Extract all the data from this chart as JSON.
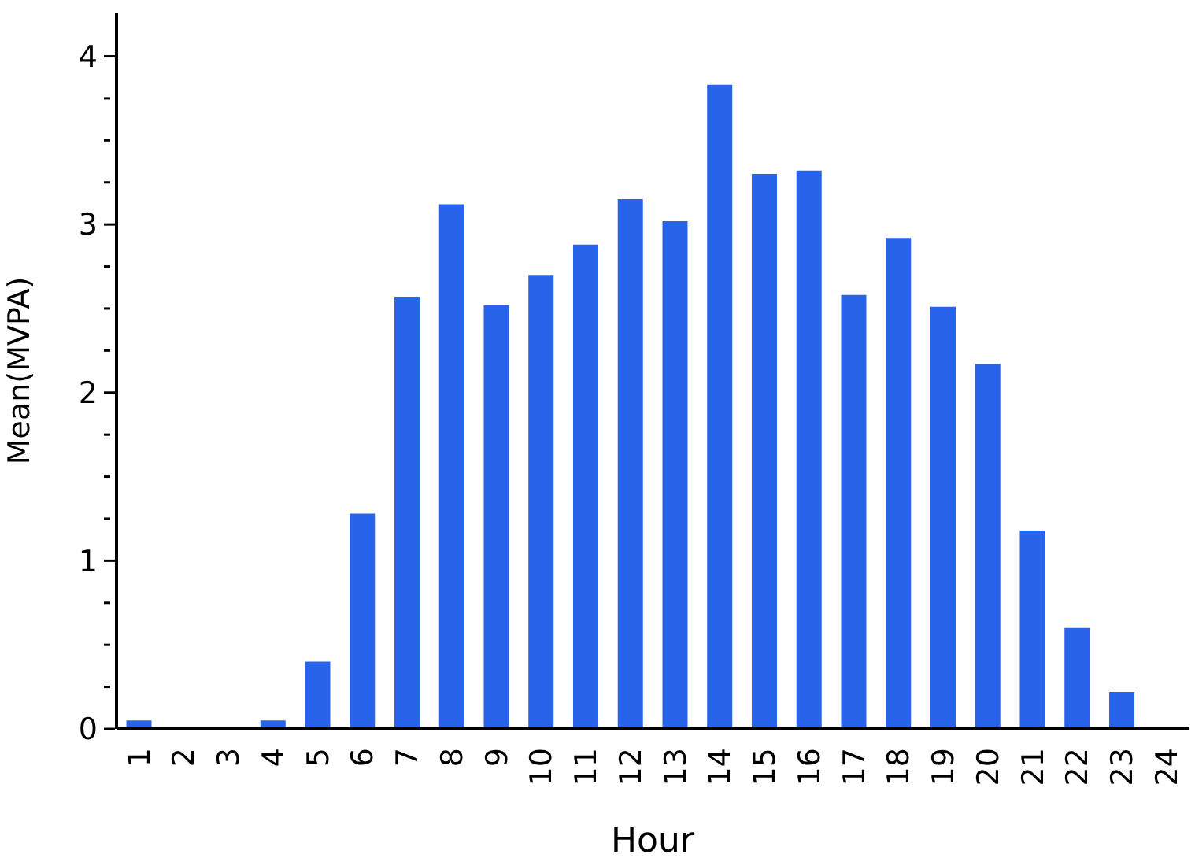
{
  "chart_data": {
    "type": "bar",
    "xlabel": "Hour",
    "ylabel": "Mean(MVPA)",
    "categories": [
      "1",
      "2",
      "3",
      "4",
      "5",
      "6",
      "7",
      "8",
      "9",
      "10",
      "11",
      "12",
      "13",
      "14",
      "15",
      "16",
      "17",
      "18",
      "19",
      "20",
      "21",
      "22",
      "23",
      "24"
    ],
    "values": [
      0.05,
      0,
      0,
      0.05,
      0.4,
      1.28,
      2.57,
      3.12,
      2.52,
      2.7,
      2.88,
      3.15,
      3.02,
      3.83,
      3.3,
      3.32,
      2.58,
      2.92,
      2.51,
      2.17,
      1.18,
      0.6,
      0.22,
      0
    ],
    "color": "#2864ea",
    "ylim": [
      0,
      4.26
    ],
    "yticks": [
      0,
      {
        "value": 0.25,
        "label": null
      },
      {
        "value": 0.5,
        "label": null
      },
      {
        "value": 0.75,
        "label": null
      },
      1,
      {
        "value": 1.25,
        "label": null
      },
      {
        "value": 1.5,
        "label": null
      },
      {
        "value": 1.75,
        "label": null
      },
      2,
      {
        "value": 2.25,
        "label": null
      },
      {
        "value": 2.5,
        "label": null
      },
      {
        "value": 2.75,
        "label": null
      },
      3,
      {
        "value": 3.25,
        "label": null
      },
      {
        "value": 3.5,
        "label": null
      },
      {
        "value": 3.75,
        "label": null
      },
      4
    ],
    "grid": false,
    "legend": false
  }
}
